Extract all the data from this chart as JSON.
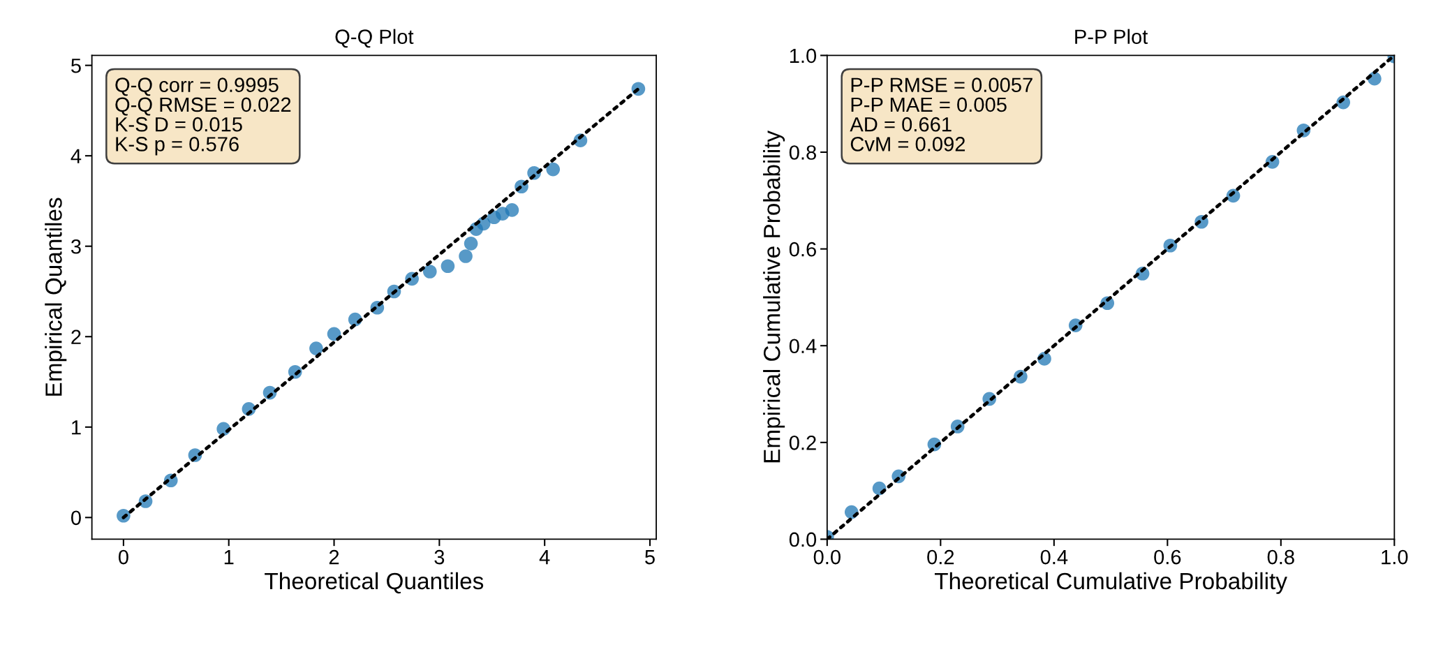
{
  "chart_data": [
    {
      "type": "scatter",
      "title": "Q-Q Plot",
      "xlabel": "Theoretical Quantiles",
      "ylabel": "Empirical Quantiles",
      "xlim": [
        -0.3,
        5.06
      ],
      "ylim": [
        -0.24,
        5.11
      ],
      "xticks": [
        0,
        1,
        2,
        3,
        4,
        5
      ],
      "yticks": [
        0,
        1,
        2,
        3,
        4,
        5
      ],
      "grid": false,
      "legend": false,
      "annotations": [
        "Q-Q corr = 0.9995",
        "Q-Q RMSE = 0.022",
        "K-S D = 0.015",
        "K-S p = 0.576"
      ],
      "series": [
        {
          "color": "#1f77b4",
          "marker": "circle",
          "x": [
            0,
            0.21,
            0.45,
            0.68,
            0.95,
            1.19,
            1.39,
            1.63,
            1.83,
            2.0,
            2.2,
            2.41,
            2.57,
            2.74,
            2.91,
            3.08,
            3.25,
            3.3,
            3.35,
            3.42,
            3.52,
            3.6,
            3.69,
            3.78,
            3.9,
            4.08,
            4.34,
            4.89
          ],
          "values": [
            0.02,
            0.18,
            0.41,
            0.69,
            0.98,
            1.2,
            1.38,
            1.61,
            1.87,
            2.03,
            2.19,
            2.32,
            2.5,
            2.64,
            2.72,
            2.78,
            2.89,
            3.03,
            3.19,
            3.25,
            3.32,
            3.36,
            3.4,
            3.66,
            3.81,
            3.85,
            4.17,
            4.74
          ]
        },
        {
          "type": "line",
          "color": "#000000",
          "line_style": "dotted",
          "x": [
            0,
            4.89
          ],
          "values": [
            0,
            4.74
          ]
        }
      ]
    },
    {
      "type": "scatter",
      "title": "P-P Plot",
      "xlabel": "Theoretical Cumulative Probability",
      "ylabel": "Empirical Cumulative Probability",
      "xlim": [
        0,
        1
      ],
      "ylim": [
        0,
        1
      ],
      "xticks": [
        {
          "value": 0,
          "label": "0.0"
        },
        {
          "value": 0.2,
          "label": "0.2"
        },
        {
          "value": 0.4,
          "label": "0.4"
        },
        {
          "value": 0.6,
          "label": "0.6"
        },
        {
          "value": 0.8,
          "label": "0.8"
        },
        {
          "value": 1,
          "label": "1.0"
        }
      ],
      "yticks": [
        {
          "value": 0,
          "label": "0.0"
        },
        {
          "value": 0.2,
          "label": "0.2"
        },
        {
          "value": 0.4,
          "label": "0.4"
        },
        {
          "value": 0.6,
          "label": "0.6"
        },
        {
          "value": 0.8,
          "label": "0.8"
        },
        {
          "value": 1,
          "label": "1.0"
        }
      ],
      "grid": false,
      "legend": false,
      "annotations": [
        "P-P RMSE = 0.0057",
        "P-P MAE = 0.005",
        "AD = 0.661",
        "CvM = 0.092"
      ],
      "series": [
        {
          "color": "#1f77b4",
          "marker": "circle",
          "x": [
            0,
            0.043,
            0.092,
            0.126,
            0.189,
            0.23,
            0.286,
            0.341,
            0.383,
            0.438,
            0.494,
            0.556,
            0.605,
            0.66,
            0.716,
            0.785,
            0.84,
            0.91,
            0.965,
            1.0
          ],
          "values": [
            0.005,
            0.056,
            0.105,
            0.13,
            0.196,
            0.233,
            0.29,
            0.336,
            0.373,
            0.442,
            0.488,
            0.549,
            0.607,
            0.656,
            0.71,
            0.78,
            0.845,
            0.903,
            0.952,
            0.998
          ]
        },
        {
          "type": "line",
          "color": "#000000",
          "line_style": "dotted",
          "x": [
            0,
            1
          ],
          "values": [
            0,
            1
          ]
        }
      ]
    }
  ]
}
